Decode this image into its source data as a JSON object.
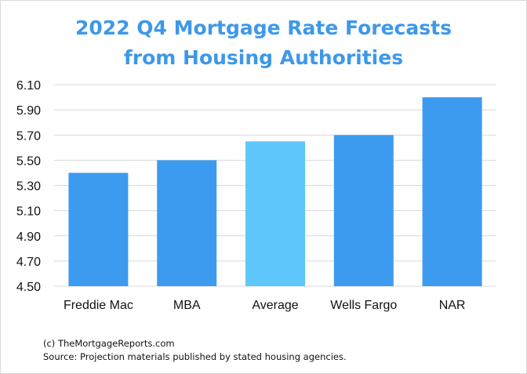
{
  "title_lines": [
    "2022 Q4 Mortgage Rate Forecasts",
    "from Housing Authorities"
  ],
  "footnotes": [
    "(c) TheMortgageReports.com",
    "Source: Projection materials published by stated housing agencies."
  ],
  "colors": {
    "title": "#3d98ea",
    "bar": "#3d9bef",
    "highlight": "#5ec8fc",
    "grid": "#d9d9d9",
    "border": "#d9d9d9"
  },
  "chart_data": {
    "type": "bar",
    "title": "2022 Q4 Mortgage Rate Forecasts from Housing Authorities",
    "categories": [
      "Freddie Mac",
      "MBA",
      "Average",
      "Wells Fargo",
      "NAR"
    ],
    "values": [
      5.4,
      5.5,
      5.65,
      5.7,
      6.0
    ],
    "highlight_category": "Average",
    "ylim": [
      4.5,
      6.1
    ],
    "yticks": [
      "4.50",
      "4.70",
      "4.90",
      "5.10",
      "5.30",
      "5.50",
      "5.70",
      "5.90",
      "6.10"
    ],
    "grid": true,
    "legend": "none",
    "xlabel": "",
    "ylabel": ""
  }
}
